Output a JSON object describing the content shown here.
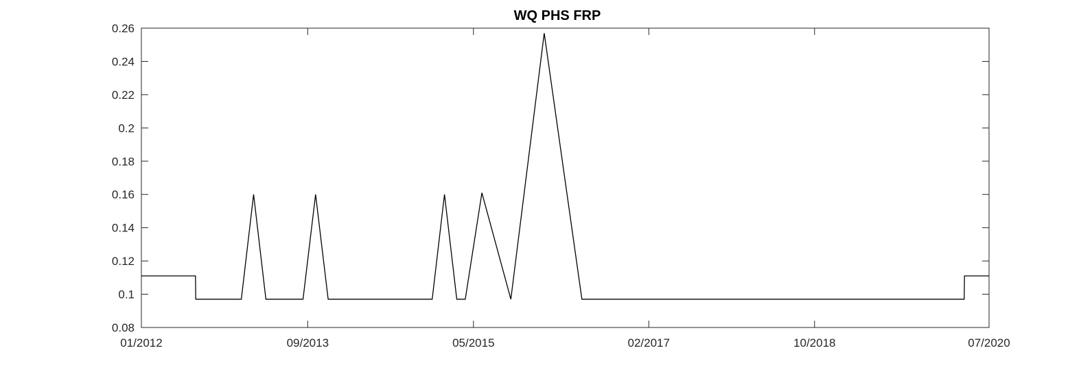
{
  "chart_data": {
    "type": "line",
    "title": "WQ PHS FRP",
    "xlabel": "",
    "ylabel": "",
    "xlim": [
      "2012-01-01",
      "2020-07-01"
    ],
    "ylim": [
      0.08,
      0.26
    ],
    "x_ticks": [
      "01/2012",
      "09/2013",
      "05/2015",
      "02/2017",
      "10/2018",
      "07/2020"
    ],
    "y_ticks": [
      "0.08",
      "0.1",
      "0.12",
      "0.14",
      "0.16",
      "0.18",
      "0.2",
      "0.22",
      "0.24",
      "0.26"
    ],
    "grid": false,
    "series": [
      {
        "color": "#000000",
        "x": [
          "2012-01-01",
          "2012-07-17",
          "2012-07-18",
          "2013-01-01",
          "2013-02-15",
          "2013-04-01",
          "2013-08-15",
          "2013-09-30",
          "2013-11-15",
          "2014-12-01",
          "2015-01-15",
          "2015-03-01",
          "2015-04-01",
          "2015-06-01",
          "2015-09-15",
          "2016-01-15",
          "2016-06-01",
          "2020-04-01",
          "2020-04-02",
          "2020-07-01"
        ],
        "y": [
          0.111,
          0.111,
          0.097,
          0.097,
          0.16,
          0.097,
          0.097,
          0.16,
          0.097,
          0.097,
          0.16,
          0.097,
          0.097,
          0.161,
          0.097,
          0.257,
          0.097,
          0.097,
          0.111,
          0.111
        ]
      }
    ]
  }
}
